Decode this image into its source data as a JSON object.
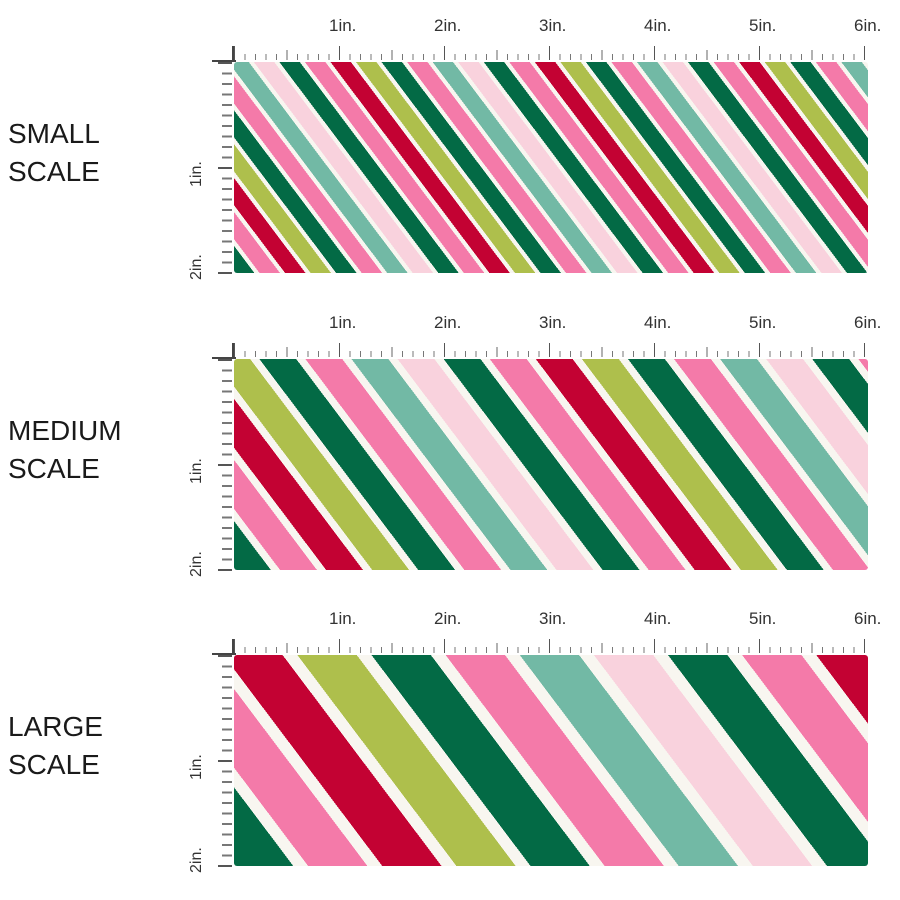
{
  "colors": {
    "green": "#036a45",
    "pink": "#f47aa9",
    "red": "#c30233",
    "lime": "#aebf4c",
    "teal": "#72b9a5",
    "lightpink": "#f9d2dd",
    "cream": "#f8f6f0"
  },
  "stripe_order": [
    "green",
    "pink",
    "red",
    "lime",
    "green",
    "pink",
    "teal",
    "lightpink"
  ],
  "ruler": {
    "top": [
      "1in.",
      "2in.",
      "3in.",
      "4in.",
      "5in.",
      "6in."
    ],
    "left": [
      "1in.",
      "2in."
    ]
  },
  "sections": [
    {
      "line1": "SMALL",
      "line2": "SCALE"
    },
    {
      "line1": "MEDIUM",
      "line2": "SCALE"
    },
    {
      "line1": "LARGE",
      "line2": "SCALE"
    }
  ]
}
